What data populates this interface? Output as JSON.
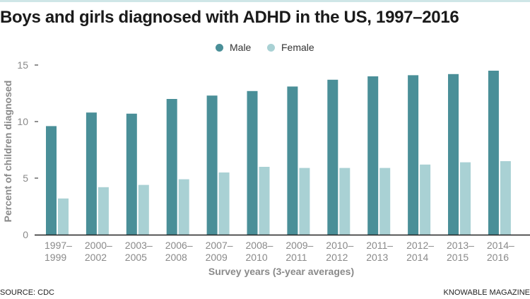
{
  "title": "Boys and girls diagnosed with ADHD in the US, 1997–2016",
  "source": "SOURCE: CDC",
  "credit": "KNOWABLE MAGAZINE",
  "colors": {
    "male": "#4a8f98",
    "female": "#a9d1d4",
    "top_bar": "#cfe6e7",
    "axis": "#222222",
    "text_muted": "#8a8a8a"
  },
  "chart_data": {
    "type": "bar",
    "title": "Boys and girls diagnosed with ADHD in the US, 1997–2016",
    "xlabel": "Survey years (3-year averages)",
    "ylabel": "Percent of children diagnosed",
    "ylim": [
      0,
      15
    ],
    "yticks": [
      0,
      5,
      10,
      15
    ],
    "grid": false,
    "legend_position": "top-center",
    "categories": [
      [
        "1997–",
        "1999"
      ],
      [
        "2000–",
        "2002"
      ],
      [
        "2003–",
        "2005"
      ],
      [
        "2006–",
        "2008"
      ],
      [
        "2007–",
        "2009"
      ],
      [
        "2008–",
        "2010"
      ],
      [
        "2009–",
        "2011"
      ],
      [
        "2010–",
        "2012"
      ],
      [
        "2011–",
        "2013"
      ],
      [
        "2012–",
        "2014"
      ],
      [
        "2013–",
        "2015"
      ],
      [
        "2014–",
        "2016"
      ]
    ],
    "series": [
      {
        "name": "Male",
        "color": "#4a8f98",
        "values": [
          9.6,
          10.8,
          10.7,
          12.0,
          12.3,
          12.7,
          13.1,
          13.7,
          14.0,
          14.1,
          14.2,
          14.5
        ]
      },
      {
        "name": "Female",
        "color": "#a9d1d4",
        "values": [
          3.2,
          4.2,
          4.4,
          4.9,
          5.5,
          6.0,
          5.9,
          5.9,
          5.9,
          6.2,
          6.4,
          6.5
        ]
      }
    ]
  }
}
